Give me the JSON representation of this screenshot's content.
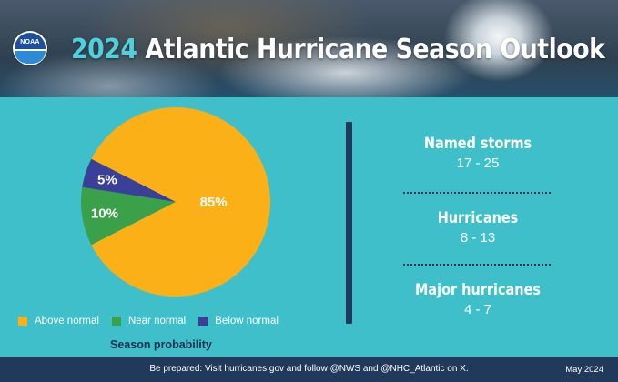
{
  "header": {
    "logo_text": "NOAA",
    "title_year": "2024",
    "title_rest": "Atlantic Hurricane Season Outlook"
  },
  "chart_data": {
    "type": "pie",
    "slices": [
      {
        "name": "Above normal",
        "value": 85,
        "label": "85%",
        "color": "#fbb017"
      },
      {
        "name": "Near normal",
        "value": 10,
        "label": "10%",
        "color": "#3aa04a"
      },
      {
        "name": "Below normal",
        "value": 5,
        "label": "5%",
        "color": "#3a3f97"
      }
    ],
    "xlabel": "Season probability",
    "legend_position": "bottom"
  },
  "stats": [
    {
      "label": "Named storms",
      "value": "17 - 25"
    },
    {
      "label": "Hurricanes",
      "value": "8 - 13"
    },
    {
      "label": "Major hurricanes",
      "value": "4 - 7"
    }
  ],
  "footer": {
    "message": "Be prepared: Visit hurricanes.gov and follow @NWS and @NHC_Atlantic on X.",
    "date": "May 2024"
  }
}
